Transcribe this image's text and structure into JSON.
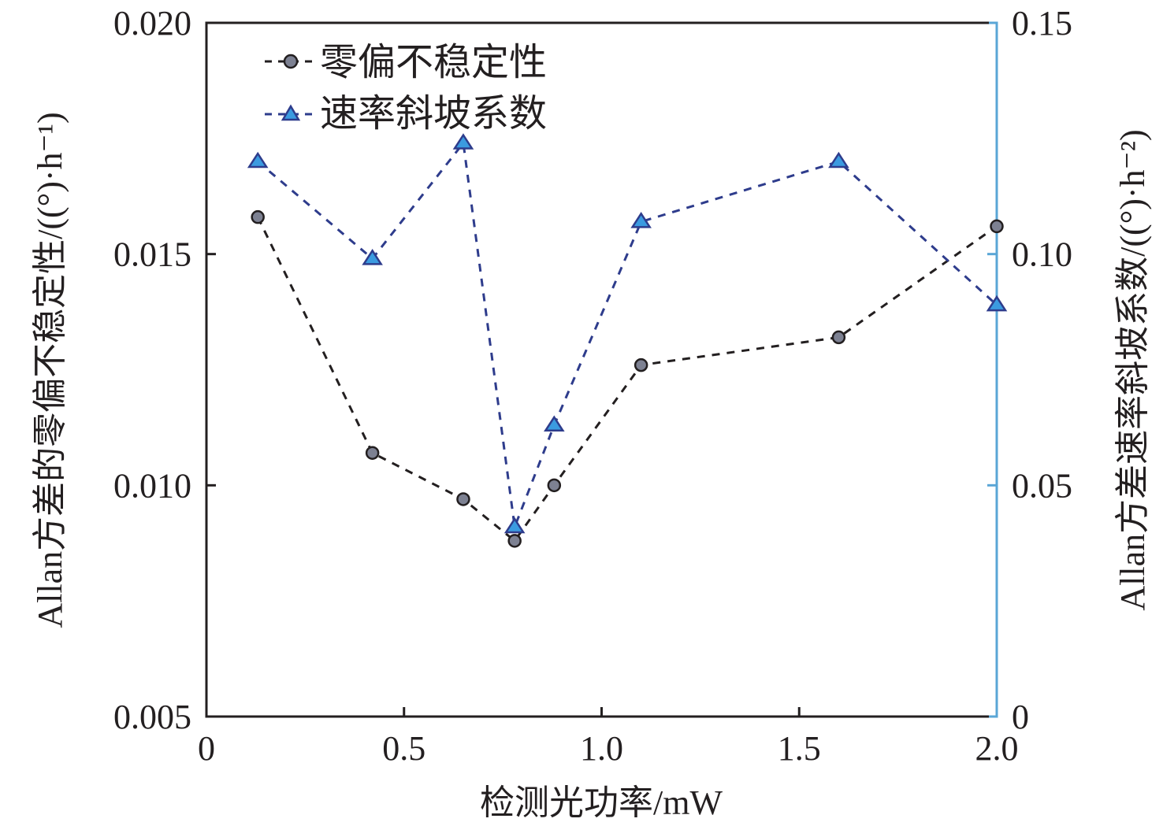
{
  "chart_data": {
    "type": "line",
    "title": "",
    "xlabel": "检测光功率/mW",
    "ylabel_left": "Allan方差的零偏不稳定性/((°)·h⁻¹)",
    "ylabel_right": "Allan方差速率斜坡系数/((°)·h⁻²)",
    "xlim": [
      0,
      2.0
    ],
    "ylim_left": [
      0.005,
      0.02
    ],
    "ylim_right": [
      0,
      0.15
    ],
    "x_ticks": [
      0,
      0.5,
      1.0,
      1.5,
      2.0
    ],
    "x_tick_labels": [
      "0",
      "0.5",
      "1.0",
      "1.5",
      "2.0"
    ],
    "y_left_ticks": [
      0.005,
      0.01,
      0.015,
      0.02
    ],
    "y_left_tick_labels": [
      "0.005",
      "0.010",
      "0.015",
      "0.020"
    ],
    "y_right_ticks": [
      0,
      0.05,
      0.1,
      0.15
    ],
    "y_right_tick_labels": [
      "0",
      "0.05",
      "0.10",
      "0.15"
    ],
    "grid": false,
    "legend_position": "top-left",
    "x": [
      0.13,
      0.42,
      0.65,
      0.78,
      0.88,
      1.1,
      1.6,
      2.0
    ],
    "series": [
      {
        "name": "零偏不稳定性",
        "axis": "left",
        "marker": "circle",
        "line_style": "dashed",
        "line_color": "#231f20",
        "marker_fill": "#7d8192",
        "values": [
          0.0158,
          0.0107,
          0.0097,
          0.0088,
          0.01,
          0.0126,
          0.0132,
          0.0156
        ]
      },
      {
        "name": "速率斜坡系数",
        "axis": "right",
        "marker": "triangle",
        "line_style": "dashed",
        "line_color": "#2e3c8c",
        "marker_fill": "#3b9be0",
        "values": [
          0.12,
          0.099,
          0.124,
          0.041,
          0.063,
          0.107,
          0.12,
          0.089
        ]
      }
    ],
    "axis_colors": {
      "left": "#231f20",
      "right": "#5aa6d6"
    }
  }
}
